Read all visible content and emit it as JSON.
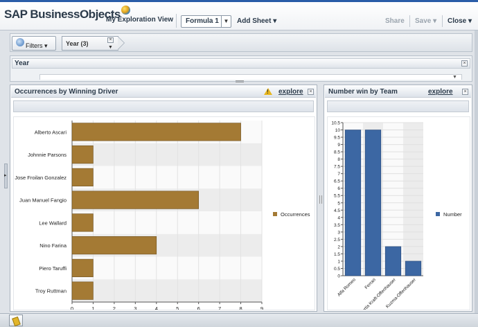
{
  "header": {
    "logo_text": "SAP BusinessObjects",
    "view_title": "My Exploration View",
    "formula_tab": "Formula 1",
    "add_sheet": "Add Sheet ▾",
    "share": "Share",
    "save": "Save ▾",
    "close": "Close ▾"
  },
  "filterbar": {
    "filters_label": "Filters ▾",
    "chip_label": "Year (3)",
    "chip_close": "×",
    "chip_dropdown": "▼"
  },
  "year_panel": {
    "title": "Year",
    "close": "×"
  },
  "left_panel": {
    "title": "Occurrences by Winning Driver",
    "explore": "explore",
    "close": "×"
  },
  "right_panel": {
    "title": "Number win by Team",
    "explore": "explore",
    "close": "×"
  },
  "icons": [
    "globe-filter-icon",
    "warning-icon",
    "close-icon",
    "chevron-down-icon",
    "splitter-handle-icon",
    "pencil-tool-icon"
  ],
  "colors": {
    "bar_brown": "#a47a34",
    "bar_blue": "#3c67a3",
    "accent": "#2a5da8"
  },
  "chart_data": [
    {
      "type": "bar",
      "orientation": "horizontal",
      "categories": [
        "Alberto Ascari",
        "Johnnie Parsons",
        "Jose Froilan Gonzalez",
        "Juan Manuel Fangio",
        "Lee Wallard",
        "Nino Farina",
        "Piero Taruffi",
        "Troy Ruttman"
      ],
      "series": [
        {
          "name": "Occurrences",
          "values": [
            8,
            1,
            1,
            6,
            1,
            4,
            1,
            1
          ]
        }
      ],
      "xlim": [
        0,
        9
      ],
      "xticks": [
        "0",
        "1",
        "2",
        "3",
        "4",
        "5",
        "6",
        "7",
        "8",
        "9"
      ],
      "legend": "right",
      "grid": true
    },
    {
      "type": "bar",
      "orientation": "vertical",
      "categories": [
        "Alfa Romeo",
        "Ferrari",
        "Kurtis Kraft-Offenhauser",
        "Kuzma-Offenhauser"
      ],
      "series": [
        {
          "name": "Number",
          "values": [
            10,
            10,
            2,
            1
          ]
        }
      ],
      "ylim": [
        0,
        10.5
      ],
      "yticks": [
        "0",
        "0.5",
        "1",
        "1.5",
        "2",
        "2.5",
        "3",
        "3.5",
        "4",
        "4.5",
        "5",
        "5.5",
        "6",
        "6.5",
        "7",
        "7.5",
        "8",
        "8.5",
        "9",
        "9.5",
        "10",
        "10.5"
      ],
      "legend": "right",
      "grid": true
    }
  ]
}
